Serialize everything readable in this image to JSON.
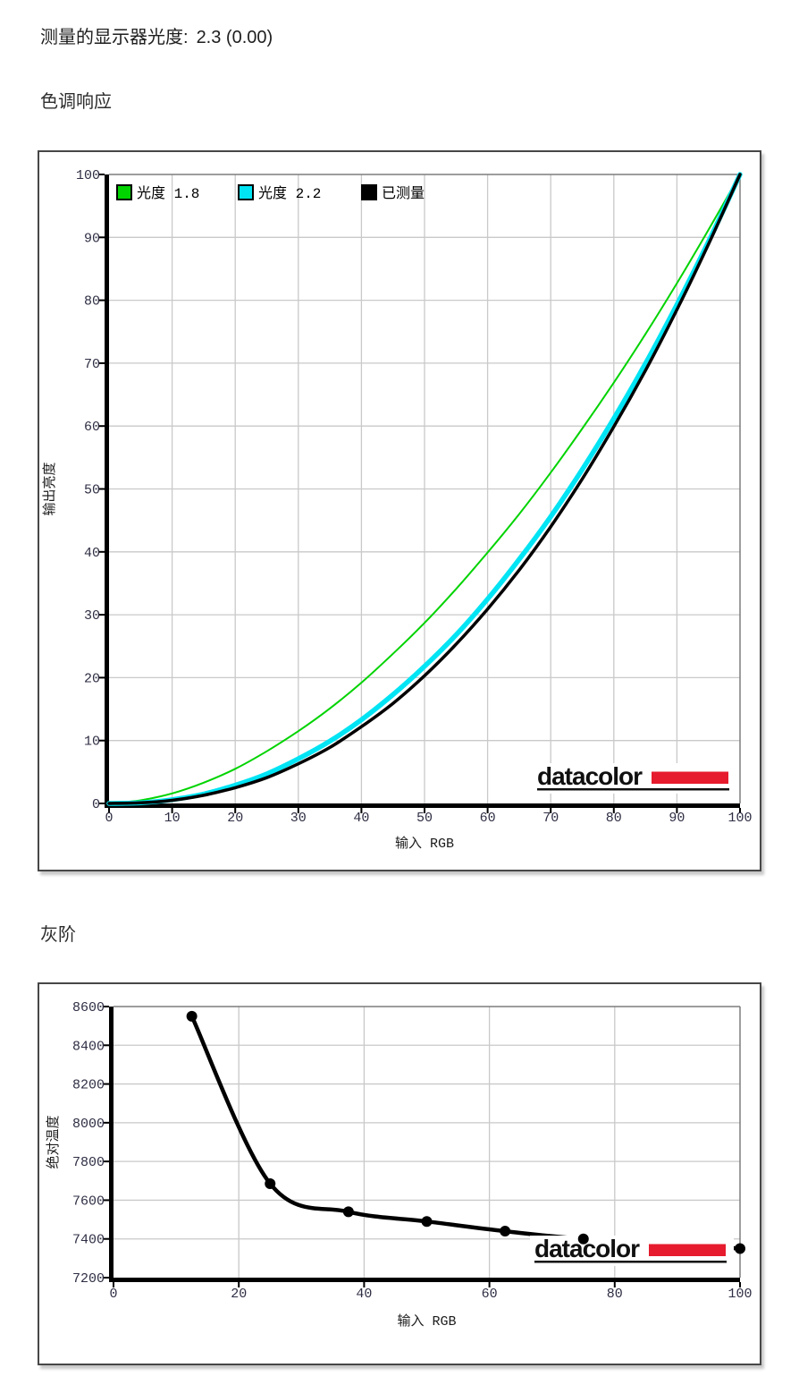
{
  "header": {
    "label": "测量的显示器光度:",
    "value": "2.3 (0.00)"
  },
  "sections": {
    "tone_response": {
      "title": "色调响应"
    },
    "grayscale": {
      "title": "灰阶"
    }
  },
  "logo": {
    "text": "datacolor",
    "accent": "#e61b2d",
    "text_color": "#101010"
  },
  "colors": {
    "grid": "#c9c9c9",
    "plot_border": "#7d7d7d",
    "axis": "#000000",
    "tick_label": "#2e2e44",
    "background": "#ffffff"
  },
  "chart_data": [
    {
      "id": "tone-response",
      "type": "line",
      "title": "色调响应",
      "xlabel": "输入 RGB",
      "ylabel": "输出亮度",
      "xlim": [
        0,
        100
      ],
      "ylim": [
        0,
        100
      ],
      "xticks": [
        0,
        10,
        20,
        30,
        40,
        50,
        60,
        70,
        80,
        90,
        100
      ],
      "yticks": [
        0,
        10,
        20,
        30,
        40,
        50,
        60,
        70,
        80,
        90,
        100
      ],
      "grid": true,
      "legend_position": "top-inside",
      "x": [
        0,
        5,
        10,
        15,
        20,
        25,
        30,
        35,
        40,
        45,
        50,
        55,
        60,
        65,
        70,
        75,
        80,
        85,
        90,
        95,
        100
      ],
      "series": [
        {
          "name": "光度 1.8",
          "gamma": 1.8,
          "color": "#00d300",
          "width": 2,
          "values": [
            0,
            0.5,
            1.6,
            3.3,
            5.5,
            8.3,
            11.5,
            15.1,
            19.2,
            23.8,
            28.7,
            34.1,
            39.9,
            46.0,
            52.6,
            59.6,
            66.9,
            74.6,
            82.7,
            91.2,
            100
          ]
        },
        {
          "name": "光度 2.2",
          "gamma": 2.2,
          "color": "#00e4f4",
          "width": 5.5,
          "values": [
            0,
            0.1,
            0.6,
            1.5,
            2.9,
            4.7,
            7.1,
            9.9,
            13.3,
            17.3,
            21.8,
            26.8,
            32.5,
            38.8,
            45.6,
            53.1,
            61.2,
            69.9,
            79.3,
            89.3,
            100
          ]
        },
        {
          "name": "已测量",
          "gamma": 2.3,
          "color": "#000000",
          "width": 3.5,
          "values": [
            0,
            0.1,
            0.5,
            1.3,
            2.5,
            4.1,
            6.3,
            8.9,
            12.2,
            15.9,
            20.3,
            25.3,
            30.9,
            37.1,
            44.0,
            51.6,
            59.9,
            68.8,
            78.5,
            88.9,
            100
          ]
        }
      ]
    },
    {
      "id": "grayscale",
      "type": "line",
      "title": "灰阶",
      "xlabel": "输入 RGB",
      "ylabel": "绝对温度",
      "xlim": [
        0,
        100
      ],
      "ylim": [
        7200,
        8600
      ],
      "xticks": [
        0,
        20,
        40,
        60,
        80,
        100
      ],
      "yticks": [
        7200,
        7400,
        7600,
        7800,
        8000,
        8200,
        8400,
        8600
      ],
      "grid": true,
      "series": [
        {
          "name": "已测量",
          "color": "#000000",
          "width": 4.5,
          "marker": "circle",
          "marker_radius": 6,
          "points": [
            [
              12.5,
              8550
            ],
            [
              25,
              7685
            ],
            [
              37.5,
              7540
            ],
            [
              50,
              7490
            ],
            [
              62.5,
              7440
            ],
            [
              75,
              7400
            ],
            [
              100,
              7350
            ]
          ]
        }
      ]
    }
  ]
}
